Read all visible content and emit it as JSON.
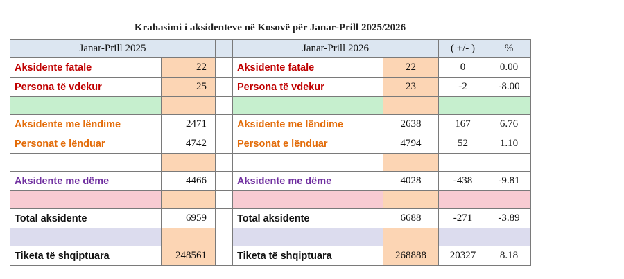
{
  "title": "Krahasimi i aksidenteve në Kosovë për Janar-Prill 2025/2026",
  "table": {
    "headers": [
      "Janar-Prill 2025",
      "Janar-Prill  2026",
      "( +/- )",
      "%"
    ],
    "rows": [
      {
        "label_2025": "Aksidente fatale",
        "value_2025": "22",
        "label_2026": "Aksidente fatale",
        "value_2026": "22",
        "diff": "0",
        "pct": "0.00"
      },
      {
        "label_2025": "Persona të vdekur",
        "value_2025": "25",
        "label_2026": "Persona të vdekur",
        "value_2026": "23",
        "diff": "-2",
        "pct": "-8.00"
      },
      {
        "label_2025": "Aksidente me lëndime",
        "value_2025": "2471",
        "label_2026": "Aksidente me lëndime",
        "value_2026": "2638",
        "diff": "167",
        "pct": "6.76"
      },
      {
        "label_2025": "Personat e lënduar",
        "value_2025": "4742",
        "label_2026": "Personat e lënduar",
        "value_2026": "4794",
        "diff": "52",
        "pct": "1.10"
      },
      {
        "label_2025": "Aksidente me dëme",
        "value_2025": "4466",
        "label_2026": "Aksidente me dëme",
        "value_2026": "4028",
        "diff": "-438",
        "pct": "-9.81"
      },
      {
        "label_2025": "Total aksidente",
        "value_2025": "6959",
        "label_2026": "Total aksidente",
        "value_2026": "6688",
        "diff": "-271",
        "pct": "-3.89"
      },
      {
        "label_2025": "Tiketa të shqiptuara",
        "value_2025": "248561",
        "label_2026": "Tiketa të shqiptuara",
        "value_2026": "268888",
        "diff": "20327",
        "pct": "8.18"
      }
    ]
  }
}
